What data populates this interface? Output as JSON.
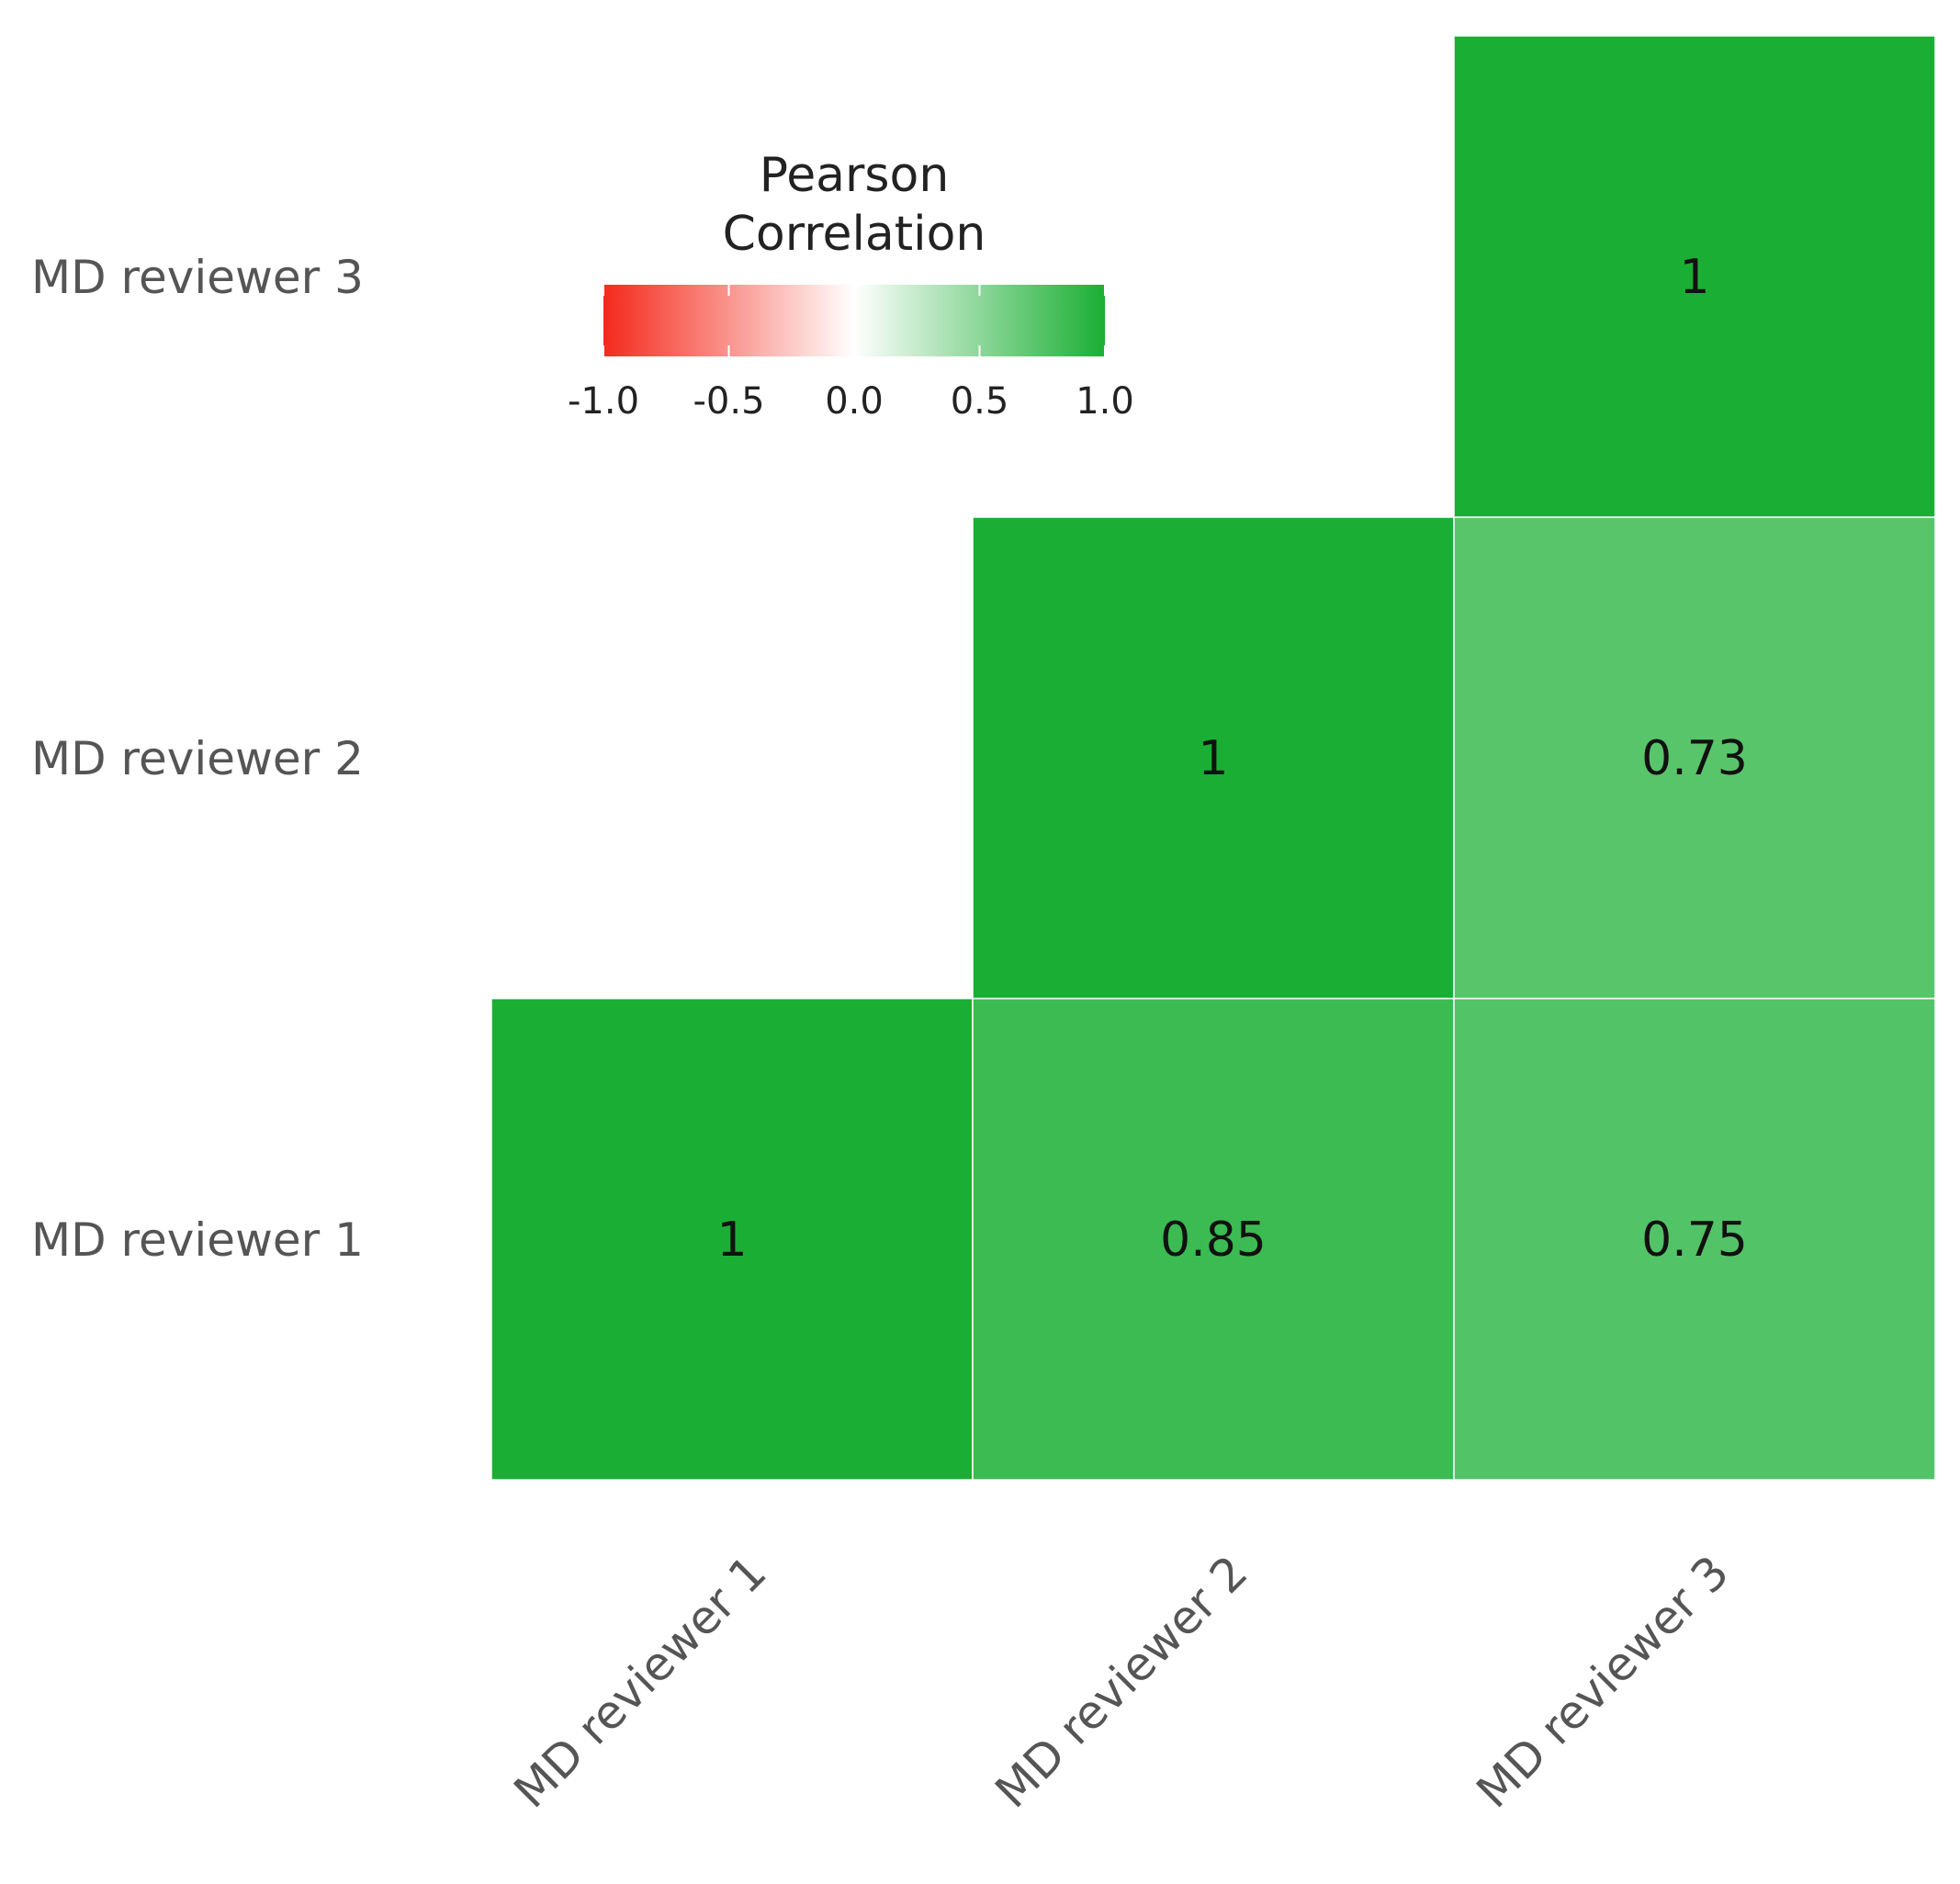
{
  "chart_data": {
    "type": "heatmap",
    "categories": [
      "MD reviewer 1",
      "MD reviewer 2",
      "MD reviewer 3"
    ],
    "cells": [
      {
        "x": "MD reviewer 1",
        "y": "MD reviewer 1",
        "value": 1,
        "label": "1"
      },
      {
        "x": "MD reviewer 2",
        "y": "MD reviewer 1",
        "value": 0.85,
        "label": "0.85"
      },
      {
        "x": "MD reviewer 3",
        "y": "MD reviewer 1",
        "value": 0.75,
        "label": "0.75"
      },
      {
        "x": "MD reviewer 2",
        "y": "MD reviewer 2",
        "value": 1,
        "label": "1"
      },
      {
        "x": "MD reviewer 3",
        "y": "MD reviewer 2",
        "value": 0.73,
        "label": "0.73"
      },
      {
        "x": "MD reviewer 3",
        "y": "MD reviewer 3",
        "value": 1,
        "label": "1"
      }
    ],
    "legend": {
      "title_line1": "Pearson",
      "title_line2": "Correlation",
      "ticks": [
        "-1.0",
        "-0.5",
        "0.0",
        "0.5",
        "1.0"
      ],
      "range": [
        -1,
        1
      ],
      "placement": "top-left"
    },
    "colors": {
      "low": "#f42a1c",
      "mid": "#ffffff",
      "high": "#1aaf34"
    },
    "grid": false
  }
}
